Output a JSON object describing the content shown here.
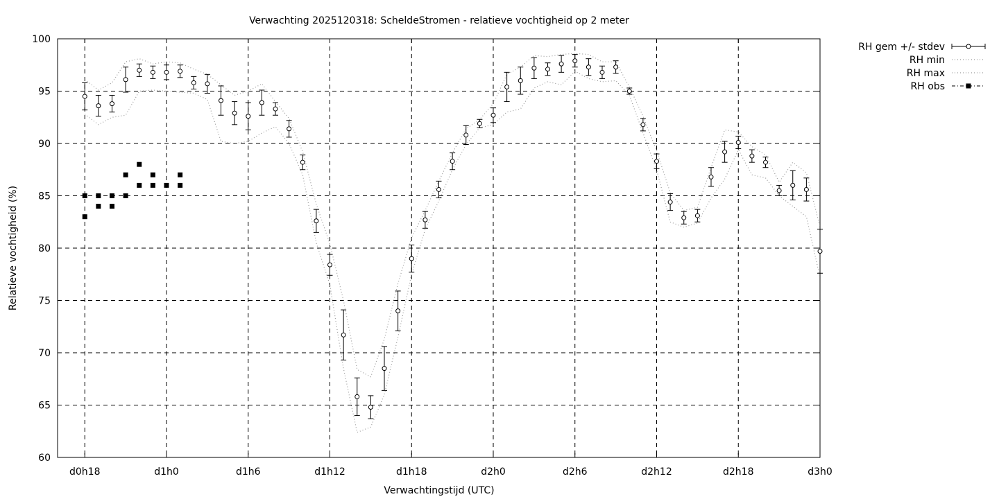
{
  "chart_data": {
    "type": "line",
    "title": "Verwachting 2025120318: ScheldeStromen - relatieve vochtigheid op 2 meter",
    "xlabel": "Verwachtingstijd (UTC)",
    "ylabel": "Relatieve vochtigheid (%)",
    "xlim": [
      16,
      72
    ],
    "ylim": [
      60,
      100
    ],
    "x_ticks": [
      {
        "x": 18,
        "label": "d0h18"
      },
      {
        "x": 24,
        "label": "d1h0"
      },
      {
        "x": 30,
        "label": "d1h6"
      },
      {
        "x": 36,
        "label": "d1h12"
      },
      {
        "x": 42,
        "label": "d1h18"
      },
      {
        "x": 48,
        "label": "d2h0"
      },
      {
        "x": 54,
        "label": "d2h6"
      },
      {
        "x": 60,
        "label": "d2h12"
      },
      {
        "x": 66,
        "label": "d2h18"
      },
      {
        "x": 72,
        "label": "d3h0"
      }
    ],
    "y_ticks": [
      60,
      65,
      70,
      75,
      80,
      85,
      90,
      95,
      100
    ],
    "grid": true,
    "legend_position": "outside-top-right",
    "series": [
      {
        "name": "RH gem +/- stdev",
        "style": "errorbar-points",
        "x": [
          18,
          19,
          20,
          21,
          22,
          23,
          24,
          25,
          26,
          27,
          28,
          29,
          30,
          31,
          32,
          33,
          34,
          35,
          36,
          37,
          38,
          39,
          40,
          41,
          42,
          43,
          44,
          45,
          46,
          47,
          48,
          49,
          50,
          51,
          52,
          53,
          54,
          55,
          56,
          57,
          58,
          59,
          60,
          61,
          62,
          63,
          64,
          65,
          66,
          67,
          68,
          69,
          70,
          71,
          72
        ],
        "mean": [
          94.5,
          93.6,
          93.8,
          96.1,
          97.0,
          96.8,
          96.8,
          96.9,
          95.8,
          95.7,
          94.1,
          92.9,
          92.6,
          93.9,
          93.3,
          91.4,
          88.2,
          82.6,
          78.4,
          71.7,
          65.8,
          64.8,
          68.5,
          74.0,
          79.0,
          82.7,
          85.6,
          88.3,
          90.8,
          91.9,
          92.7,
          95.4,
          96.0,
          97.2,
          97.1,
          97.6,
          97.9,
          97.3,
          96.8,
          97.3,
          95.0,
          91.8,
          88.3,
          84.4,
          82.9,
          83.1,
          86.8,
          89.2,
          90.1,
          88.8,
          88.2,
          85.5,
          86.0,
          85.6,
          79.7
        ],
        "stdev": [
          1.3,
          1.0,
          0.8,
          1.2,
          0.6,
          0.6,
          0.7,
          0.6,
          0.6,
          0.9,
          1.4,
          1.1,
          1.3,
          1.2,
          0.6,
          0.8,
          0.7,
          1.1,
          1.0,
          2.4,
          1.8,
          1.1,
          2.1,
          1.9,
          1.3,
          0.8,
          0.8,
          0.8,
          0.9,
          0.4,
          0.7,
          1.4,
          1.3,
          1.0,
          0.6,
          0.8,
          0.6,
          0.8,
          0.6,
          0.6,
          0.3,
          0.6,
          0.7,
          0.8,
          0.6,
          0.6,
          0.9,
          1.0,
          0.6,
          0.6,
          0.5,
          0.5,
          1.4,
          1.1,
          2.1
        ]
      },
      {
        "name": "RH min",
        "style": "dotted",
        "x": [
          18,
          19,
          20,
          21,
          22,
          23,
          24,
          25,
          26,
          27,
          28,
          29,
          30,
          31,
          32,
          33,
          34,
          35,
          36,
          37,
          38,
          39,
          40,
          41,
          42,
          43,
          44,
          45,
          46,
          47,
          48,
          49,
          50,
          51,
          52,
          53,
          54,
          55,
          56,
          57,
          58,
          59,
          60,
          61,
          62,
          63,
          64,
          65,
          66,
          67,
          68,
          69,
          70,
          71,
          72
        ],
        "values": [
          92.8,
          91.8,
          92.5,
          92.7,
          95.0,
          95.1,
          95.0,
          94.9,
          94.8,
          94.2,
          90.2,
          90.0,
          90.2,
          91.0,
          91.6,
          90.0,
          87.0,
          80.5,
          76.5,
          68.5,
          62.4,
          62.9,
          66.0,
          71.5,
          77.5,
          81.8,
          84.5,
          87.5,
          89.9,
          91.5,
          91.8,
          93.0,
          93.3,
          95.3,
          95.9,
          95.6,
          96.9,
          96.2,
          95.9,
          96.0,
          94.6,
          91.0,
          87.5,
          82.5,
          82.0,
          82.4,
          84.8,
          86.6,
          89.4,
          87.0,
          86.7,
          85.0,
          84.0,
          83.0,
          77.2
        ]
      },
      {
        "name": "RH max",
        "style": "dotted",
        "x": [
          18,
          19,
          20,
          21,
          22,
          23,
          24,
          25,
          26,
          27,
          28,
          29,
          30,
          31,
          32,
          33,
          34,
          35,
          36,
          37,
          38,
          39,
          40,
          41,
          42,
          43,
          44,
          45,
          46,
          47,
          48,
          49,
          50,
          51,
          52,
          53,
          54,
          55,
          56,
          57,
          58,
          59,
          60,
          61,
          62,
          63,
          64,
          65,
          66,
          67,
          68,
          69,
          70,
          71,
          72
        ],
        "values": [
          96.1,
          95.1,
          95.8,
          97.8,
          98.1,
          97.6,
          97.8,
          97.7,
          97.1,
          96.6,
          95.6,
          94.6,
          95.0,
          95.7,
          94.0,
          92.4,
          89.2,
          84.2,
          80.4,
          75.0,
          68.4,
          67.7,
          71.3,
          76.6,
          81.0,
          83.6,
          86.4,
          89.1,
          91.4,
          92.3,
          93.8,
          96.6,
          97.3,
          98.4,
          98.3,
          98.5,
          98.6,
          98.5,
          97.8,
          97.8,
          95.4,
          92.6,
          89.3,
          85.3,
          83.6,
          83.9,
          87.7,
          91.3,
          91.1,
          89.7,
          88.9,
          86.3,
          88.2,
          87.2,
          82.0
        ]
      },
      {
        "name": "RH obs",
        "style": "points",
        "x": [
          18,
          18,
          19,
          19,
          20,
          20,
          21,
          21,
          22,
          22,
          23,
          23,
          24,
          25,
          25
        ],
        "values": [
          83,
          85,
          84,
          85,
          84,
          85,
          85,
          87,
          86,
          88,
          86,
          87,
          86,
          86,
          87
        ]
      }
    ]
  }
}
